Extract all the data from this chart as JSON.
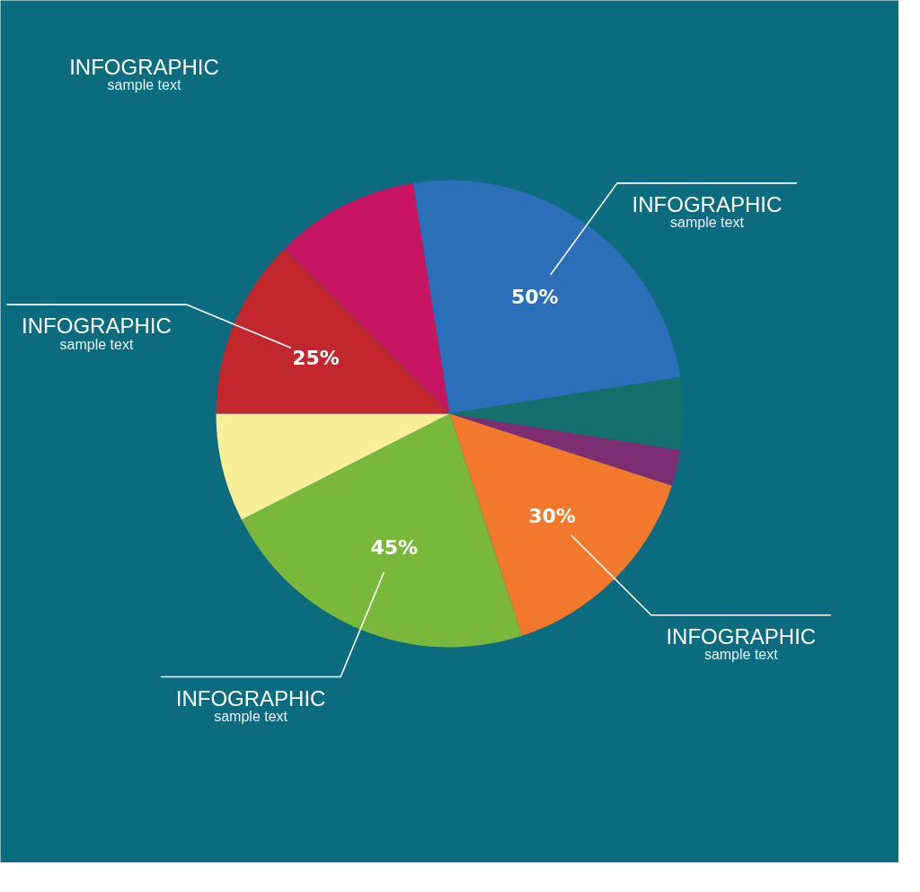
{
  "chart_data": {
    "type": "pie",
    "categories": [
      null,
      "INFOGRAPHIC\nsample text",
      null,
      null,
      "INFOGRAPHIC\nsample text",
      "INFOGRAPHIC\nsample text",
      null,
      "INFOGRAPHIC\nsample text"
    ],
    "values": [
      20,
      50,
      10,
      5,
      30,
      45,
      15,
      25
    ],
    "colors": [
      "#c81561",
      "#2a6fb8",
      "#14706c",
      "#7d2e72",
      "#f2792b",
      "#7ab83c",
      "#f8ef98",
      "#c1272d"
    ],
    "value_labels": [
      null,
      "50%",
      null,
      null,
      "30%",
      "45%",
      null,
      "25%"
    ],
    "annotations": [
      "INFOGRAPHIC\nsample text"
    ]
  }
}
